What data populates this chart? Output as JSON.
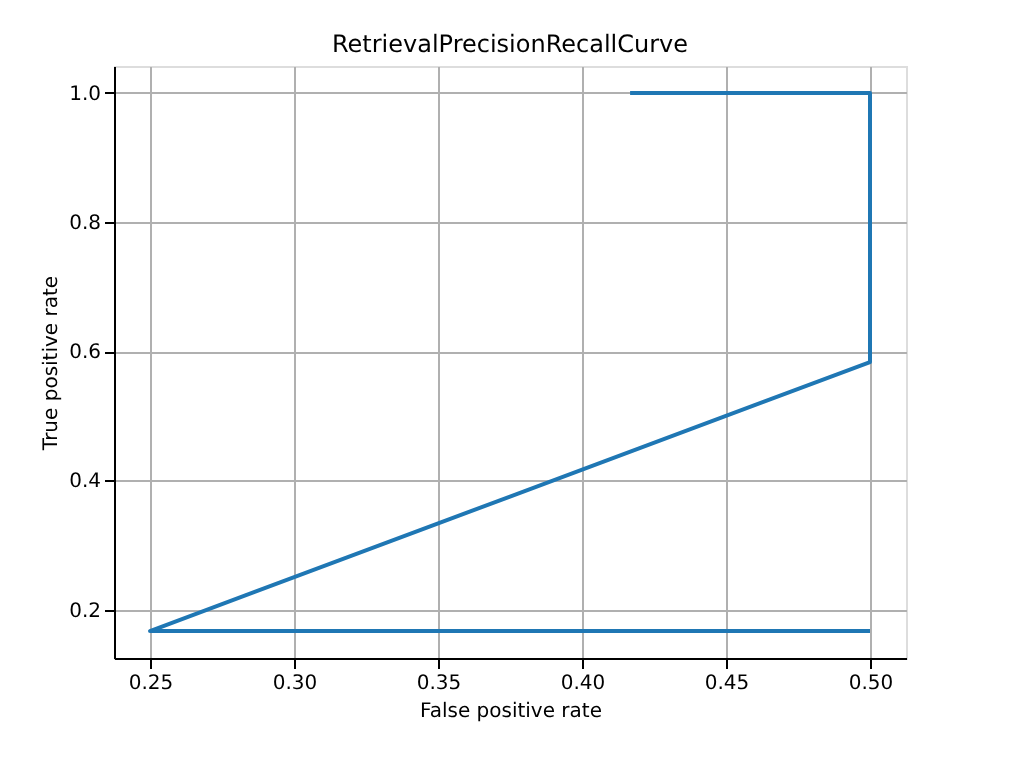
{
  "chart_data": {
    "type": "line",
    "title": "RetrievalPrecisionRecallCurve",
    "xlabel": "False positive rate",
    "ylabel": "True positive rate",
    "x": [
      0.5,
      0.25,
      0.5,
      0.5,
      0.4167
    ],
    "series": [
      {
        "color": "#1f77b4",
        "values": [
          0.1667,
          0.1667,
          0.5833,
          1.0,
          1.0
        ]
      }
    ],
    "xlim": [
      0.2375,
      0.5125
    ],
    "ylim": [
      0.125,
      1.0417
    ],
    "xticks": [
      {
        "value": 0.25,
        "label": "0.25"
      },
      {
        "value": 0.3,
        "label": "0.30"
      },
      {
        "value": 0.35,
        "label": "0.35"
      },
      {
        "value": 0.4,
        "label": "0.40"
      },
      {
        "value": 0.45,
        "label": "0.45"
      },
      {
        "value": 0.5,
        "label": "0.50"
      }
    ],
    "yticks": [
      {
        "value": 0.2,
        "label": "0.2"
      },
      {
        "value": 0.4,
        "label": "0.4"
      },
      {
        "value": 0.6,
        "label": "0.6"
      },
      {
        "value": 0.8,
        "label": "0.8"
      },
      {
        "value": 1.0,
        "label": "1.0"
      }
    ],
    "grid": true,
    "marker": "none",
    "line_style": "solid"
  }
}
